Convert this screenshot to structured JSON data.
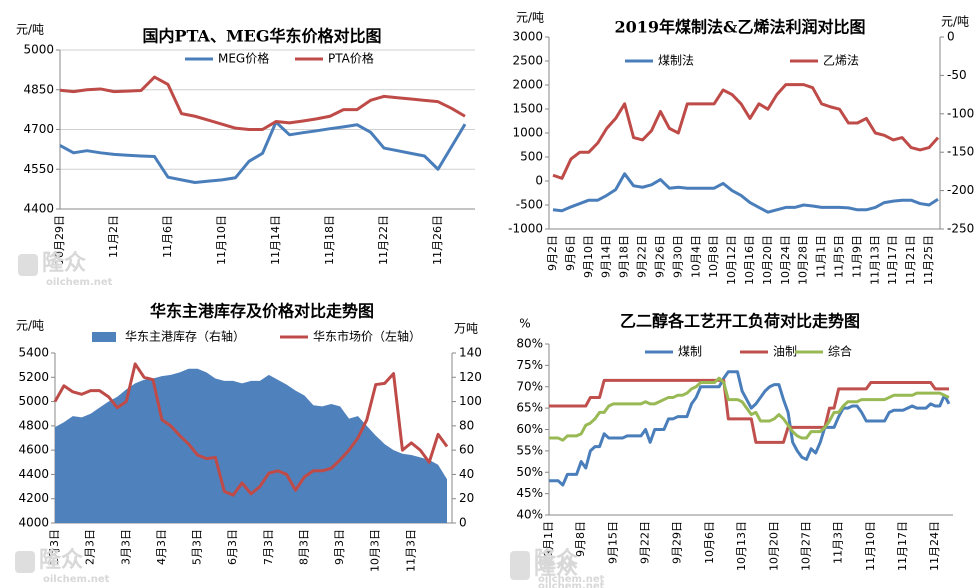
{
  "chart_data": [
    {
      "type": "line",
      "title": "国内PTA、MEG华东价格对比图",
      "y_label": "元/吨",
      "grid": true,
      "categories": [
        "10月29日",
        null,
        null,
        null,
        "11月2日",
        null,
        null,
        null,
        "11月6日",
        null,
        null,
        null,
        "11月10日",
        null,
        null,
        null,
        "11月14日",
        null,
        null,
        null,
        "11月18日",
        null,
        null,
        null,
        "11月22日",
        null,
        null,
        null,
        "11月26日",
        null,
        null
      ],
      "ylim": [
        4400,
        5000
      ],
      "yticks": [
        4400,
        4550,
        4700,
        4850,
        5000
      ],
      "series": [
        {
          "name": "MEG价格",
          "color": "#4a7ebb",
          "values": [
            4640,
            4612,
            4620,
            4612,
            4606,
            4603,
            4600,
            4598,
            4520,
            4510,
            4500,
            4505,
            4510,
            4518,
            4580,
            4610,
            4728,
            4680,
            4688,
            4695,
            4703,
            4710,
            4718,
            4690,
            4630,
            4620,
            4610,
            4600,
            4550,
            4635,
            4720
          ]
        },
        {
          "name": "PTA价格",
          "color": "#be4b48",
          "values": [
            4848,
            4843,
            4850,
            4853,
            4843,
            4845,
            4847,
            4898,
            4870,
            4760,
            4750,
            4735,
            4720,
            4705,
            4700,
            4700,
            4730,
            4725,
            4732,
            4740,
            4750,
            4775,
            4775,
            4810,
            4825,
            4820,
            4815,
            4810,
            4805,
            4780,
            4750
          ]
        }
      ]
    },
    {
      "type": "line",
      "title": "2019年煤制法&乙烯法利润对比图",
      "y_label": "元/吨",
      "y2_label": "元/吨",
      "grid": false,
      "categories": [
        "9月2日",
        null,
        "9月6日",
        null,
        "9月10日",
        null,
        "9月14日",
        null,
        "9月18日",
        null,
        "9月22日",
        null,
        "9月26日",
        null,
        "9月30日",
        null,
        "10月4日",
        null,
        "10月8日",
        null,
        "10月12日",
        null,
        "10月16日",
        null,
        "10月20日",
        null,
        "10月24日",
        null,
        "10月28日",
        null,
        "11月1日",
        null,
        "11月5日",
        null,
        "11月9日",
        null,
        "11月13日",
        null,
        "11月17日",
        null,
        "11月21日",
        null,
        "11月25日",
        null
      ],
      "ylim": [
        -1000,
        3000
      ],
      "yticks": [
        -1000,
        -500,
        0,
        500,
        1000,
        1500,
        2000,
        2500,
        3000
      ],
      "y2lim": [
        -250,
        0
      ],
      "y2ticks": [
        -250,
        -200,
        -150,
        -100,
        -50,
        0
      ],
      "series": [
        {
          "name": "煤制法",
          "color": "#4a7ebb",
          "values": [
            -600,
            -620,
            -540,
            -470,
            -400,
            -400,
            -300,
            -180,
            150,
            -100,
            -130,
            -80,
            30,
            -150,
            -130,
            -150,
            -150,
            -150,
            -150,
            -50,
            -200,
            -300,
            -450,
            -550,
            -650,
            -600,
            -550,
            -550,
            -500,
            -520,
            -550,
            -550,
            -550,
            -560,
            -600,
            -600,
            -550,
            -450,
            -420,
            -400,
            -400,
            -470,
            -500,
            -380
          ]
        },
        {
          "name": "乙烯法",
          "color": "#be4b48",
          "axis": "y2",
          "values": [
            -180,
            -184,
            -159,
            -150,
            -150,
            -138,
            -119,
            -106,
            -87,
            -131,
            -134,
            -122,
            -97,
            -119,
            -125,
            -87,
            -87,
            -87,
            -87,
            -69,
            -75,
            -87,
            -106,
            -87,
            -94,
            -75,
            -62,
            -62,
            -62,
            -66,
            -87,
            -91,
            -94,
            -112,
            -112,
            -106,
            -125,
            -128,
            -134,
            -131,
            -144,
            -147,
            -144,
            -131
          ]
        }
      ]
    },
    {
      "type": "line",
      "title": "华东主港库存及价格对比走势图",
      "y_label": "元/吨",
      "y2_label": "万吨",
      "grid": false,
      "categories": [
        "1月3日",
        null,
        null,
        null,
        "2月3日",
        null,
        null,
        null,
        "3月3日",
        null,
        null,
        null,
        "4月3日",
        null,
        null,
        null,
        "5月3日",
        null,
        null,
        null,
        "6月3日",
        null,
        null,
        null,
        "7月3日",
        null,
        null,
        null,
        "8月3日",
        null,
        null,
        null,
        "9月3日",
        null,
        null,
        null,
        "10月3日",
        null,
        null,
        null,
        "11月3日",
        null,
        null,
        null,
        null
      ],
      "ylim": [
        4000,
        5400
      ],
      "yticks": [
        4000,
        4200,
        4400,
        4600,
        4800,
        5000,
        5200,
        5400
      ],
      "y2lim": [
        0,
        140
      ],
      "y2ticks": [
        0,
        20,
        40,
        60,
        80,
        100,
        120,
        140
      ],
      "series": [
        {
          "name": "华东主港库存（右轴）",
          "color": "#4f81bd",
          "style": "area",
          "axis": "y2",
          "values": [
            79,
            83,
            88,
            87,
            90,
            95,
            100,
            104,
            110,
            115,
            118,
            119,
            121,
            122,
            124,
            127,
            127,
            124,
            119,
            117,
            117,
            115,
            117,
            117,
            122,
            118,
            114,
            109,
            105,
            97,
            96,
            98,
            96,
            86,
            88,
            80,
            72,
            65,
            60,
            57,
            56,
            54,
            52,
            48,
            36
          ]
        },
        {
          "name": "华东市场价（左轴）",
          "color": "#be4b48",
          "values": [
            5000,
            5130,
            5080,
            5060,
            5090,
            5090,
            5040,
            4950,
            5000,
            5310,
            5200,
            5180,
            4850,
            4800,
            4720,
            4650,
            4560,
            4530,
            4540,
            4260,
            4230,
            4330,
            4240,
            4300,
            4410,
            4430,
            4400,
            4270,
            4380,
            4430,
            4430,
            4450,
            4520,
            4600,
            4700,
            4850,
            5140,
            5150,
            5230,
            4600,
            4660,
            4600,
            4500,
            4730,
            4630
          ]
        }
      ]
    },
    {
      "type": "line",
      "title": "乙二醇各工艺开工负荷对比走势图",
      "y_label": "%",
      "grid": false,
      "categories": [
        "9月1日",
        null,
        null,
        null,
        null,
        null,
        null,
        "9月8日",
        null,
        null,
        null,
        null,
        null,
        null,
        "9月15日",
        null,
        null,
        null,
        null,
        null,
        null,
        "9月22日",
        null,
        null,
        null,
        null,
        null,
        null,
        "9月29日",
        null,
        null,
        null,
        null,
        null,
        null,
        "10月6日",
        null,
        null,
        null,
        null,
        null,
        null,
        "10月13日",
        null,
        null,
        null,
        null,
        null,
        null,
        "10月20日",
        null,
        null,
        null,
        null,
        null,
        null,
        "10月27日",
        null,
        null,
        null,
        null,
        null,
        null,
        "11月3日",
        null,
        null,
        null,
        null,
        null,
        null,
        "11月10日",
        null,
        null,
        null,
        null,
        null,
        null,
        "11月17日",
        null,
        null,
        null,
        null,
        null,
        null,
        "11月24日",
        null,
        null,
        null
      ],
      "ylim": [
        40,
        80
      ],
      "yticks": [
        {
          "value": 40,
          "label": "40%"
        },
        {
          "value": 45,
          "label": "45%"
        },
        {
          "value": 50,
          "label": "50%"
        },
        {
          "value": 55,
          "label": "55%"
        },
        {
          "value": 60,
          "label": "60%"
        },
        {
          "value": 65,
          "label": "65%"
        },
        {
          "value": 70,
          "label": "70%"
        },
        {
          "value": 75,
          "label": "75%"
        },
        {
          "value": 80,
          "label": "80%"
        }
      ],
      "series": [
        {
          "name": "煤制",
          "color": "#4a7ebb",
          "values": [
            48,
            48,
            48,
            47,
            49.5,
            49.5,
            49.5,
            52.5,
            51,
            55,
            56,
            56,
            59,
            58,
            58,
            58,
            58,
            58.5,
            58.5,
            58.5,
            58.5,
            60,
            57,
            60,
            60,
            60,
            62.5,
            62.5,
            63,
            63,
            63,
            66,
            67.5,
            70,
            70,
            70,
            70,
            70,
            72,
            73.5,
            73.5,
            73.5,
            69,
            67,
            65,
            66,
            67.5,
            69,
            70,
            70.5,
            70.5,
            67,
            64,
            57,
            55,
            53.5,
            53,
            55.5,
            54.5,
            57,
            60.5,
            60.5,
            60.5,
            63,
            65,
            65,
            65.5,
            65.5,
            64,
            62,
            62,
            62,
            62,
            62,
            64,
            64.5,
            64.5,
            64.5,
            65,
            65.5,
            65,
            65,
            65,
            66,
            65.5,
            65.5,
            68,
            66
          ]
        },
        {
          "name": "油制",
          "color": "#c0504d",
          "values": [
            65.5,
            65.5,
            65.5,
            65.5,
            65.5,
            65.5,
            65.5,
            65.5,
            65.5,
            67.5,
            67.5,
            67.5,
            71.5,
            71.5,
            71.5,
            71.5,
            71.5,
            71.5,
            71.5,
            71.5,
            71.5,
            71.5,
            71.5,
            71.5,
            71.5,
            71.5,
            71.5,
            71.5,
            71.5,
            71.5,
            71.5,
            71.5,
            71.5,
            71.5,
            71.5,
            71.5,
            71.5,
            71.5,
            71.5,
            62.5,
            62.5,
            62.5,
            62.5,
            62.5,
            62.5,
            57,
            57,
            57,
            57,
            57,
            57,
            57,
            60.5,
            60.5,
            60.5,
            60.5,
            60.5,
            60.5,
            60.5,
            60.5,
            60.5,
            65,
            65,
            69.5,
            69.5,
            69.5,
            69.5,
            69.5,
            69.5,
            69.5,
            71,
            71,
            71,
            71,
            71,
            71,
            71,
            71,
            71,
            71,
            71,
            71,
            71,
            71,
            69.5,
            69.5,
            69.5,
            69.5
          ]
        },
        {
          "name": "综合",
          "color": "#98b954",
          "values": [
            58,
            58,
            58,
            57.5,
            58.5,
            58.5,
            58.5,
            59,
            61,
            61.5,
            62.5,
            64,
            64,
            65.5,
            66,
            66,
            66,
            66,
            66,
            66,
            66,
            66.5,
            66,
            66,
            66.5,
            67,
            67.5,
            67.5,
            68,
            68,
            68.5,
            69.5,
            70,
            71,
            71,
            71,
            71,
            72,
            71,
            67,
            67,
            67,
            66.5,
            65,
            63.5,
            64,
            62,
            62,
            62,
            62.5,
            63.5,
            62.5,
            61,
            59.5,
            58.5,
            58,
            58,
            59.5,
            59.5,
            59.5,
            60.5,
            62,
            64,
            64,
            65.5,
            66.5,
            66.5,
            66.5,
            67,
            67,
            67,
            67,
            67,
            67,
            67.5,
            68,
            68,
            68,
            68,
            68,
            68.5,
            68.5,
            68.5,
            68.5,
            68.5,
            68.5,
            68,
            67.5
          ]
        }
      ]
    }
  ],
  "watermark": {
    "brand": "隆众",
    "site": "oilchem.net"
  }
}
